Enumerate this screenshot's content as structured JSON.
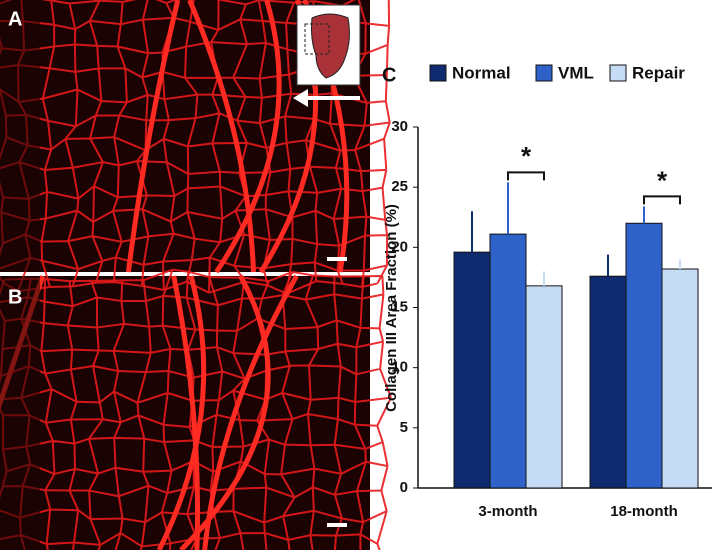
{
  "panel_labels": [
    "A",
    "B",
    "C"
  ],
  "chart_data": {
    "type": "bar",
    "y_label": "Collagen III Area Fraction (%)",
    "categories": [
      "3-month",
      "18-month"
    ],
    "series": [
      {
        "name": "Normal",
        "color": "#0f2a6e",
        "values": [
          19.6,
          17.6
        ],
        "errors": [
          3.4,
          1.8
        ]
      },
      {
        "name": "VML",
        "color": "#2f62c9",
        "values": [
          21.1,
          22.0
        ],
        "errors": [
          4.3,
          1.4
        ]
      },
      {
        "name": "Repair",
        "color": "#c6dcf4",
        "values": [
          16.8,
          18.2
        ],
        "errors": [
          1.2,
          0.8
        ]
      }
    ],
    "annotations": [
      "*",
      "*"
    ],
    "ylim": [
      0,
      30
    ],
    "yticks": [
      0,
      5,
      10,
      15,
      20,
      25,
      30
    ]
  }
}
